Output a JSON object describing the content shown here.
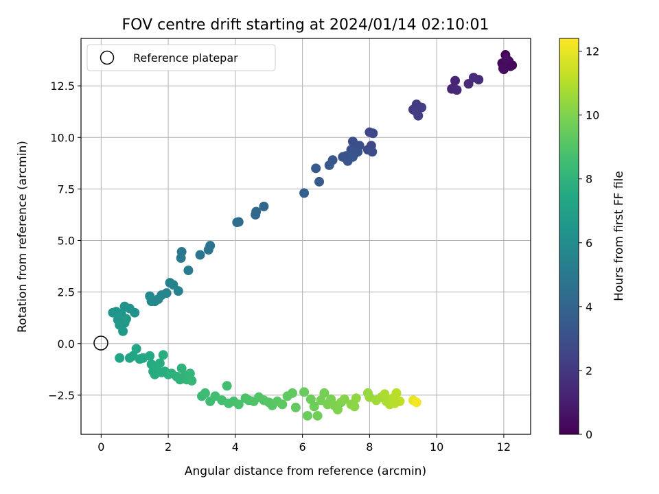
{
  "chart_data": {
    "type": "scatter",
    "title": "FOV centre drift starting at 2024/01/14 02:10:01",
    "xlabel": "Angular distance from reference (arcmin)",
    "ylabel": "Rotation from reference (arcmin)",
    "xlim": [
      -0.6,
      12.8
    ],
    "ylim": [
      -4.4,
      14.8
    ],
    "xticks": [
      0,
      2,
      4,
      6,
      8,
      10,
      12
    ],
    "xtick_labels": [
      "0",
      "2",
      "4",
      "6",
      "8",
      "10",
      "12"
    ],
    "yticks": [
      -2.5,
      0.0,
      2.5,
      5.0,
      7.5,
      10.0,
      12.5
    ],
    "ytick_labels": [
      "−2.5",
      "0.0",
      "2.5",
      "5.0",
      "7.5",
      "10.0",
      "12.5"
    ],
    "grid": true,
    "legend": {
      "placement": "top-left",
      "entries": [
        "Reference platepar"
      ]
    },
    "reference_point": {
      "x": 0,
      "y": 0,
      "marker": "open-circle"
    },
    "colorbar": {
      "label": "Hours from first FF file",
      "range": [
        0,
        12.4
      ],
      "ticks": [
        0,
        2,
        4,
        6,
        8,
        10,
        12
      ],
      "tick_labels": [
        "0",
        "2",
        "4",
        "6",
        "8",
        "10",
        "12"
      ],
      "colormap": "viridis"
    },
    "points": [
      [
        12.0,
        13.3,
        0.1
      ],
      [
        12.05,
        14.0,
        0.15
      ],
      [
        12.1,
        13.5,
        0.2
      ],
      [
        12.2,
        13.45,
        0.25
      ],
      [
        11.95,
        13.6,
        0.3
      ],
      [
        12.15,
        13.7,
        0.35
      ],
      [
        11.98,
        13.35,
        0.4
      ],
      [
        12.08,
        13.8,
        0.45
      ],
      [
        12.25,
        13.5,
        0.3
      ],
      [
        10.5,
        12.4,
        1.2
      ],
      [
        10.55,
        12.75,
        1.25
      ],
      [
        10.45,
        12.35,
        1.3
      ],
      [
        10.6,
        12.3,
        1.35
      ],
      [
        10.95,
        12.6,
        1.5
      ],
      [
        11.1,
        12.9,
        1.55
      ],
      [
        11.25,
        12.8,
        1.6
      ],
      [
        9.3,
        11.35,
        2.1
      ],
      [
        9.4,
        11.6,
        2.15
      ],
      [
        9.55,
        11.45,
        2.2
      ],
      [
        9.45,
        11.05,
        2.25
      ],
      [
        9.35,
        11.3,
        2.18
      ],
      [
        8.0,
        10.25,
        2.6
      ],
      [
        8.1,
        10.2,
        2.65
      ],
      [
        8.05,
        9.6,
        2.7
      ],
      [
        7.95,
        9.4,
        2.75
      ],
      [
        8.08,
        9.3,
        2.8
      ],
      [
        7.5,
        9.8,
        2.9
      ],
      [
        7.6,
        9.5,
        2.95
      ],
      [
        7.55,
        9.2,
        3.0
      ],
      [
        7.7,
        9.6,
        3.05
      ],
      [
        7.45,
        9.4,
        3.1
      ],
      [
        7.3,
        9.1,
        3.15
      ],
      [
        7.2,
        9.05,
        3.2
      ],
      [
        7.35,
        8.85,
        3.22
      ],
      [
        7.5,
        9.05,
        3.25
      ],
      [
        7.65,
        9.3,
        3.18
      ],
      [
        6.9,
        8.9,
        3.4
      ],
      [
        6.8,
        8.65,
        3.45
      ],
      [
        6.5,
        7.85,
        3.6
      ],
      [
        6.4,
        8.5,
        3.55
      ],
      [
        6.05,
        7.3,
        3.7
      ],
      [
        4.85,
        6.65,
        4.1
      ],
      [
        4.6,
        6.25,
        4.15
      ],
      [
        4.62,
        6.4,
        4.2
      ],
      [
        4.1,
        5.9,
        4.3
      ],
      [
        4.05,
        5.88,
        4.35
      ],
      [
        3.25,
        4.75,
        4.7
      ],
      [
        3.2,
        4.55,
        4.75
      ],
      [
        2.95,
        4.3,
        4.8
      ],
      [
        2.4,
        4.45,
        4.9
      ],
      [
        2.38,
        4.15,
        4.95
      ],
      [
        2.6,
        3.55,
        5.1
      ],
      [
        2.05,
        2.95,
        5.4
      ],
      [
        2.15,
        2.85,
        5.45
      ],
      [
        2.3,
        2.55,
        5.5
      ],
      [
        1.95,
        2.45,
        5.55
      ],
      [
        1.8,
        2.35,
        5.6
      ],
      [
        1.6,
        2.05,
        5.7
      ],
      [
        1.7,
        2.15,
        5.75
      ],
      [
        1.5,
        2.05,
        5.8
      ],
      [
        1.45,
        2.3,
        5.85
      ],
      [
        1.0,
        1.5,
        6.2
      ],
      [
        0.85,
        1.7,
        6.25
      ],
      [
        0.7,
        1.8,
        6.3
      ],
      [
        0.45,
        1.55,
        6.35
      ],
      [
        0.35,
        1.5,
        6.4
      ],
      [
        0.6,
        1.45,
        6.45
      ],
      [
        0.5,
        1.15,
        6.5
      ],
      [
        0.7,
        1.0,
        6.55
      ],
      [
        0.55,
        0.9,
        6.6
      ],
      [
        0.65,
        0.6,
        6.65
      ],
      [
        0.75,
        1.2,
        6.7
      ],
      [
        0.55,
        -0.7,
        7.2
      ],
      [
        0.85,
        -0.7,
        7.25
      ],
      [
        0.95,
        -0.6,
        7.3
      ],
      [
        1.05,
        -0.25,
        7.35
      ],
      [
        1.15,
        -0.75,
        7.4
      ],
      [
        1.25,
        -0.7,
        7.45
      ],
      [
        1.45,
        -0.6,
        7.5
      ],
      [
        1.5,
        -1.0,
        7.55
      ],
      [
        1.55,
        -1.35,
        7.6
      ],
      [
        1.65,
        -1.2,
        7.65
      ],
      [
        1.75,
        -0.95,
        7.7
      ],
      [
        1.85,
        -0.55,
        7.75
      ],
      [
        1.9,
        -1.35,
        7.8
      ],
      [
        2.0,
        -1.5,
        7.85
      ],
      [
        2.1,
        -1.45,
        7.9
      ],
      [
        1.6,
        -1.5,
        7.6
      ],
      [
        1.8,
        -1.4,
        7.7
      ],
      [
        2.25,
        -1.6,
        7.95
      ],
      [
        2.4,
        -1.2,
        8.0
      ],
      [
        2.5,
        -1.55,
        8.05
      ],
      [
        2.55,
        -1.75,
        8.1
      ],
      [
        2.65,
        -1.45,
        8.15
      ],
      [
        2.7,
        -1.8,
        8.2
      ],
      [
        2.35,
        -1.75,
        8.0
      ],
      [
        3.0,
        -2.55,
        8.4
      ],
      [
        3.1,
        -2.4,
        8.45
      ],
      [
        3.25,
        -2.8,
        8.5
      ],
      [
        3.4,
        -2.55,
        8.55
      ],
      [
        3.6,
        -2.75,
        8.6
      ],
      [
        3.75,
        -2.05,
        8.65
      ],
      [
        3.8,
        -2.9,
        8.7
      ],
      [
        3.95,
        -2.8,
        8.75
      ],
      [
        4.1,
        -2.95,
        8.8
      ],
      [
        4.3,
        -2.65,
        8.85
      ],
      [
        4.4,
        -2.75,
        8.9
      ],
      [
        4.55,
        -2.8,
        8.95
      ],
      [
        4.7,
        -2.6,
        9.0
      ],
      [
        4.85,
        -2.75,
        9.05
      ],
      [
        5.0,
        -2.85,
        9.1
      ],
      [
        5.1,
        -3.0,
        9.15
      ],
      [
        5.25,
        -2.8,
        9.2
      ],
      [
        5.4,
        -2.95,
        9.25
      ],
      [
        5.55,
        -2.55,
        9.3
      ],
      [
        5.7,
        -2.4,
        9.35
      ],
      [
        5.8,
        -3.1,
        9.4
      ],
      [
        6.05,
        -2.35,
        9.5
      ],
      [
        6.15,
        -3.5,
        9.55
      ],
      [
        6.25,
        -2.7,
        9.6
      ],
      [
        6.35,
        -3.05,
        9.65
      ],
      [
        6.45,
        -3.5,
        9.7
      ],
      [
        6.55,
        -2.75,
        9.75
      ],
      [
        6.65,
        -2.4,
        9.8
      ],
      [
        6.75,
        -2.95,
        9.85
      ],
      [
        6.85,
        -2.7,
        9.9
      ],
      [
        6.95,
        -3.0,
        9.95
      ],
      [
        7.05,
        -3.2,
        10.0
      ],
      [
        7.15,
        -2.85,
        10.05
      ],
      [
        7.25,
        -2.7,
        10.1
      ],
      [
        7.45,
        -2.95,
        10.2
      ],
      [
        7.55,
        -3.05,
        10.25
      ],
      [
        7.6,
        -2.65,
        10.3
      ],
      [
        8.0,
        -2.6,
        10.5
      ],
      [
        7.95,
        -2.4,
        10.45
      ],
      [
        8.2,
        -2.75,
        10.6
      ],
      [
        8.35,
        -2.6,
        10.7
      ],
      [
        8.5,
        -2.8,
        10.8
      ],
      [
        8.6,
        -2.95,
        10.9
      ],
      [
        8.7,
        -2.65,
        11.0
      ],
      [
        8.8,
        -2.4,
        11.1
      ],
      [
        8.9,
        -2.8,
        11.2
      ],
      [
        8.45,
        -2.45,
        10.85
      ],
      [
        8.75,
        -2.9,
        11.05
      ],
      [
        9.3,
        -2.75,
        12.0
      ],
      [
        9.4,
        -2.85,
        12.2
      ]
    ]
  }
}
